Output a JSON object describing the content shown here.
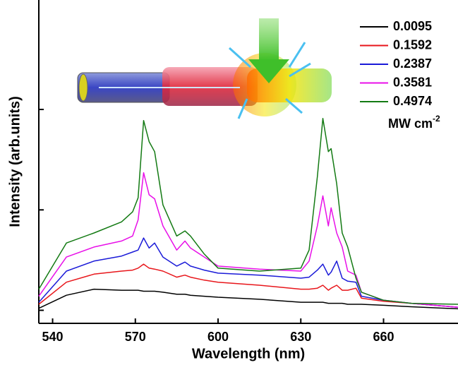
{
  "chart_data": {
    "type": "line",
    "xlabel": "Wavelength (nm)",
    "ylabel": "Intensity (arb.units)",
    "legend_title": "MW cm",
    "legend_title_sup": "-2",
    "x": [
      535,
      545,
      555,
      565,
      569,
      571,
      573,
      575,
      577,
      580,
      585,
      588,
      590,
      595,
      600,
      615,
      630,
      633,
      636,
      638,
      640,
      641,
      643,
      645,
      647,
      650,
      652,
      660,
      670,
      687
    ],
    "series": [
      {
        "name": "0.0095",
        "color": "#000000",
        "values": [
          0.02,
          0.15,
          0.21,
          0.2,
          0.2,
          0.2,
          0.19,
          0.19,
          0.19,
          0.18,
          0.16,
          0.16,
          0.15,
          0.14,
          0.13,
          0.11,
          0.08,
          0.08,
          0.08,
          0.08,
          0.07,
          0.07,
          0.07,
          0.07,
          0.06,
          0.06,
          0.06,
          0.05,
          0.035,
          0.015
        ]
      },
      {
        "name": "0.1592",
        "color": "#e8161b",
        "values": [
          0.06,
          0.28,
          0.36,
          0.39,
          0.4,
          0.42,
          0.46,
          0.42,
          0.41,
          0.39,
          0.33,
          0.35,
          0.33,
          0.3,
          0.28,
          0.25,
          0.21,
          0.21,
          0.22,
          0.25,
          0.2,
          0.22,
          0.25,
          0.2,
          0.2,
          0.22,
          0.12,
          0.09,
          0.07,
          0.03
        ]
      },
      {
        "name": "0.2387",
        "color": "#1a1ad8",
        "values": [
          0.08,
          0.39,
          0.49,
          0.54,
          0.58,
          0.6,
          0.72,
          0.62,
          0.67,
          0.53,
          0.44,
          0.48,
          0.44,
          0.4,
          0.37,
          0.35,
          0.32,
          0.33,
          0.4,
          0.46,
          0.35,
          0.38,
          0.49,
          0.32,
          0.29,
          0.28,
          0.14,
          0.1,
          0.07,
          0.03
        ]
      },
      {
        "name": "0.3581",
        "color": "#e80fe8",
        "values": [
          0.14,
          0.53,
          0.63,
          0.69,
          0.74,
          0.9,
          1.37,
          1.15,
          1.11,
          0.84,
          0.6,
          0.69,
          0.62,
          0.53,
          0.44,
          0.41,
          0.39,
          0.49,
          0.84,
          1.14,
          0.84,
          1.02,
          0.77,
          0.63,
          0.39,
          0.35,
          0.18,
          0.1,
          0.07,
          0.03
        ]
      },
      {
        "name": "0.4974",
        "color": "#137a13",
        "values": [
          0.21,
          0.67,
          0.77,
          0.88,
          0.98,
          1.12,
          1.89,
          1.68,
          1.58,
          1.05,
          0.74,
          0.79,
          0.74,
          0.56,
          0.42,
          0.39,
          0.42,
          0.6,
          1.33,
          1.91,
          1.58,
          1.61,
          1.26,
          0.77,
          0.63,
          0.32,
          0.18,
          0.1,
          0.07,
          0.06
        ]
      }
    ],
    "xlim": [
      535,
      687
    ],
    "xticks": [
      540,
      570,
      600,
      630,
      660
    ],
    "ylim": [
      -0.13,
      3.09
    ],
    "yticks": [
      0,
      1,
      2
    ]
  }
}
